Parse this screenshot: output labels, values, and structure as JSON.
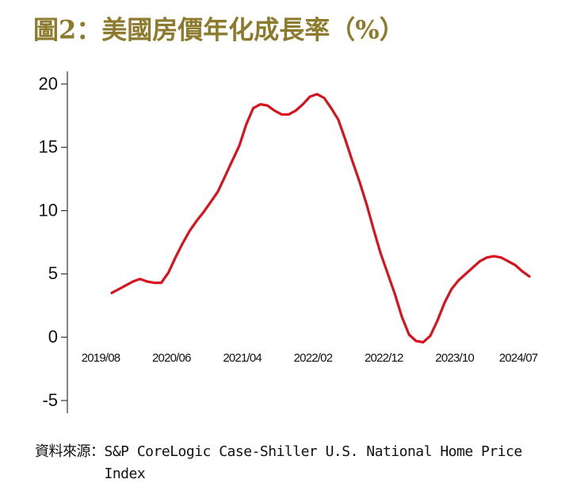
{
  "chart_data": {
    "type": "line",
    "title": "圖2：美國房價年化成長率（%）",
    "categories": [
      "2019/08",
      null,
      null,
      null,
      null,
      null,
      null,
      null,
      null,
      null,
      "2020/06",
      null,
      null,
      null,
      null,
      null,
      null,
      null,
      null,
      null,
      "2021/04",
      null,
      null,
      null,
      null,
      null,
      null,
      null,
      null,
      null,
      "2022/02",
      null,
      null,
      null,
      null,
      null,
      null,
      null,
      null,
      null,
      "2022/12",
      null,
      null,
      null,
      null,
      null,
      null,
      null,
      null,
      null,
      "2023/10",
      null,
      null,
      null,
      null,
      null,
      null,
      null,
      null,
      "2024/07"
    ],
    "series": [
      {
        "name": null,
        "color": "#d7131d",
        "values": [
          3.5,
          3.8,
          4.1,
          4.4,
          4.6,
          4.4,
          4.3,
          4.3,
          5.1,
          6.3,
          7.4,
          8.4,
          9.2,
          9.9,
          10.7,
          11.5,
          12.7,
          13.9,
          15.1,
          16.8,
          18.1,
          18.4,
          18.3,
          17.9,
          17.6,
          17.6,
          17.9,
          18.4,
          19.0,
          19.2,
          18.9,
          18.1,
          17.2,
          15.6,
          13.9,
          12.3,
          10.5,
          8.5,
          6.6,
          5.0,
          3.4,
          1.6,
          0.2,
          -0.3,
          -0.4,
          0.1,
          1.3,
          2.7,
          3.8,
          4.5,
          5.0,
          5.5,
          6.0,
          6.3,
          6.4,
          6.3,
          6.0,
          5.7,
          5.2,
          4.8
        ]
      }
    ],
    "ylim": [
      -6,
      21
    ],
    "yticks": [
      -5,
      0,
      5,
      10,
      15,
      20
    ],
    "source_label": "資料來源：",
    "source": "S&P CoreLogic Case-Shiller U.S. National Home Price Index"
  }
}
